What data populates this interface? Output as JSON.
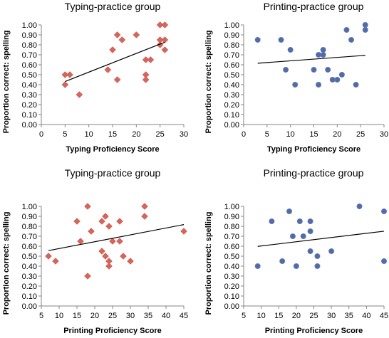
{
  "chart_data": [
    {
      "type": "scatter",
      "title": "Typing-practice group",
      "xlabel": "Typing Proficiency Score",
      "ylabel": "Proportion correct: spelling",
      "xlim": [
        0,
        30
      ],
      "xticks": [
        0,
        5,
        10,
        15,
        20,
        25,
        30
      ],
      "ylim": [
        0,
        1
      ],
      "yticks": [
        "0.00",
        "0.10",
        "0.20",
        "0.30",
        "0.40",
        "0.50",
        "0.60",
        "0.70",
        "0.80",
        "0.90",
        "1.00"
      ],
      "marker": "diamond",
      "color": "#d9645a",
      "grid": false,
      "trendline": "linear",
      "points": [
        [
          5,
          0.5
        ],
        [
          5,
          0.4
        ],
        [
          6,
          0.5
        ],
        [
          8,
          0.3
        ],
        [
          14,
          0.55
        ],
        [
          15,
          0.75
        ],
        [
          16,
          0.9
        ],
        [
          16,
          0.45
        ],
        [
          17,
          0.85
        ],
        [
          20,
          0.9
        ],
        [
          22,
          0.65
        ],
        [
          22,
          0.5
        ],
        [
          22,
          0.45
        ],
        [
          23,
          0.65
        ],
        [
          25,
          0.85
        ],
        [
          25,
          0.8
        ],
        [
          25,
          1.0
        ],
        [
          26,
          1.0
        ],
        [
          26,
          0.85
        ],
        [
          26,
          0.75
        ]
      ]
    },
    {
      "type": "scatter",
      "title": "Printing-practice group",
      "xlabel": "Typing Proficiency Score",
      "ylabel": "Proportion correct: spelling",
      "xlim": [
        0,
        30
      ],
      "xticks": [
        0,
        5,
        10,
        15,
        20,
        25,
        30
      ],
      "ylim": [
        0,
        1
      ],
      "yticks": [
        "0.00",
        "0.10",
        "0.20",
        "0.30",
        "0.40",
        "0.50",
        "0.60",
        "0.70",
        "0.80",
        "0.90",
        "1.00"
      ],
      "marker": "circle",
      "color": "#4f6bb0",
      "grid": false,
      "trendline": "linear",
      "points": [
        [
          3,
          0.85
        ],
        [
          8,
          0.85
        ],
        [
          9,
          0.55
        ],
        [
          10,
          0.75
        ],
        [
          11,
          0.4
        ],
        [
          15,
          0.55
        ],
        [
          16,
          0.7
        ],
        [
          16,
          0.4
        ],
        [
          17,
          0.75
        ],
        [
          17,
          0.7
        ],
        [
          18,
          0.55
        ],
        [
          19,
          0.45
        ],
        [
          20,
          0.45
        ],
        [
          21,
          0.5
        ],
        [
          22,
          0.95
        ],
        [
          23,
          0.85
        ],
        [
          24,
          0.4
        ],
        [
          26,
          1.0
        ],
        [
          26,
          0.95
        ]
      ]
    },
    {
      "type": "scatter",
      "title": "Typing-practice group",
      "xlabel": "Printing Proficiency Score",
      "ylabel": "Proportion correct: spelling",
      "xlim": [
        5,
        45
      ],
      "xticks": [
        5,
        10,
        15,
        20,
        25,
        30,
        35,
        40,
        45
      ],
      "ylim": [
        0,
        1
      ],
      "yticks": [
        "0.00",
        "0.10",
        "0.20",
        "0.30",
        "0.40",
        "0.50",
        "0.60",
        "0.70",
        "0.80",
        "0.90",
        "1.00"
      ],
      "marker": "diamond",
      "color": "#d9645a",
      "grid": false,
      "trendline": "linear",
      "points": [
        [
          7,
          0.5
        ],
        [
          9,
          0.45
        ],
        [
          15,
          0.85
        ],
        [
          16,
          0.65
        ],
        [
          18,
          1.0
        ],
        [
          18,
          0.3
        ],
        [
          19,
          0.75
        ],
        [
          22,
          0.85
        ],
        [
          22,
          0.55
        ],
        [
          23,
          0.9
        ],
        [
          23,
          0.5
        ],
        [
          24,
          0.8
        ],
        [
          24,
          0.45
        ],
        [
          24,
          0.4
        ],
        [
          25,
          0.65
        ],
        [
          27,
          0.85
        ],
        [
          27,
          0.65
        ],
        [
          28,
          0.5
        ],
        [
          30,
          0.45
        ],
        [
          34,
          1.0
        ],
        [
          34,
          0.9
        ],
        [
          45,
          0.75
        ]
      ]
    },
    {
      "type": "scatter",
      "title": "Printing-practice group",
      "xlabel": "Printing Proficiency Score",
      "ylabel": "Proportion correct: spelling",
      "xlim": [
        5,
        45
      ],
      "xticks": [
        5,
        10,
        15,
        20,
        25,
        30,
        35,
        40,
        45
      ],
      "ylim": [
        0,
        1
      ],
      "yticks": [
        "0.00",
        "0.10",
        "0.20",
        "0.30",
        "0.40",
        "0.50",
        "0.60",
        "0.70",
        "0.80",
        "0.90",
        "1.00"
      ],
      "marker": "circle",
      "color": "#4f6bb0",
      "grid": false,
      "trendline": "linear",
      "points": [
        [
          9,
          0.4
        ],
        [
          13,
          0.85
        ],
        [
          16,
          0.45
        ],
        [
          18,
          0.95
        ],
        [
          19,
          0.7
        ],
        [
          20,
          0.4
        ],
        [
          21,
          0.85
        ],
        [
          22,
          0.7
        ],
        [
          24,
          0.85
        ],
        [
          24,
          0.75
        ],
        [
          24,
          0.55
        ],
        [
          26,
          0.5
        ],
        [
          26,
          0.4
        ],
        [
          30,
          0.55
        ],
        [
          38,
          1.0
        ],
        [
          45,
          0.95
        ],
        [
          45,
          0.45
        ]
      ]
    }
  ]
}
